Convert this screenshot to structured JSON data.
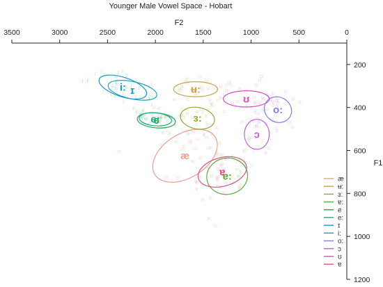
{
  "chart_data": {
    "type": "scatter",
    "title": "Younger Male Vowel Space - Hobart",
    "xlabel": "F2",
    "ylabel": "F1",
    "x_reversed": true,
    "y_reversed": true,
    "xlim": [
      3500,
      0
    ],
    "ylim": [
      0,
      1200
    ],
    "x_ticks": [
      "3500",
      "3000",
      "2500",
      "2000",
      "1500",
      "1000",
      "500",
      "0"
    ],
    "y_ticks": [
      "200",
      "400",
      "600",
      "800",
      "1000",
      "1200"
    ],
    "x_tick_values": [
      3500,
      3000,
      2500,
      2000,
      1500,
      1000,
      500,
      0
    ],
    "y_tick_values": [
      200,
      400,
      600,
      800,
      1000,
      1200
    ],
    "x_axis_position": "top",
    "y_axis_position": "right",
    "grid": false,
    "legend_position": "bottom-right",
    "series": [
      {
        "name": "æ",
        "color": "#e8a090",
        "centroid": [
          1690,
          625
        ],
        "sd_ellipse": {
          "f2_radius": 230,
          "f1_radius": 165,
          "angle_deg": 58
        }
      },
      {
        "name": "ʉ:",
        "color": "#c9a24c",
        "centroid": [
          1580,
          315
        ],
        "sd_ellipse": {
          "f2_radius": 230,
          "f1_radius": 35,
          "angle_deg": 0
        }
      },
      {
        "name": "ɜ:",
        "color": "#9aa62a",
        "centroid": [
          1560,
          450
        ],
        "sd_ellipse": {
          "f2_radius": 180,
          "f1_radius": 50,
          "angle_deg": 10
        }
      },
      {
        "name": "ɐ:",
        "color": "#5aaa3a",
        "centroid": [
          1250,
          720
        ],
        "sd_ellipse": {
          "f2_radius": 190,
          "f1_radius": 95,
          "angle_deg": 80
        }
      },
      {
        "name": "e",
        "color": "#2aa84a",
        "centroid": [
          1990,
          460
        ],
        "sd_ellipse": {
          "f2_radius": 200,
          "f1_radius": 35,
          "angle_deg": 5
        }
      },
      {
        "name": "e:",
        "color": "#1aaa8a",
        "centroid": [
          2000,
          455
        ],
        "sd_ellipse": {
          "f2_radius": 170,
          "f1_radius": 30,
          "angle_deg": 5
        }
      },
      {
        "name": "ɪ",
        "color": "#1aa4b4",
        "centroid": [
          2240,
          320
        ],
        "sd_ellipse": {
          "f2_radius": 260,
          "f1_radius": 40,
          "angle_deg": 12
        }
      },
      {
        "name": "i:",
        "color": "#1a96c8",
        "centroid": [
          2340,
          305
        ],
        "sd_ellipse": {
          "f2_radius": 260,
          "f1_radius": 45,
          "angle_deg": 18
        }
      },
      {
        "name": "o:",
        "color": "#8a7ee0",
        "centroid": [
          720,
          410
        ],
        "sd_ellipse": {
          "f2_radius": 130,
          "f1_radius": 65,
          "angle_deg": -60
        }
      },
      {
        "name": "ɔ",
        "color": "#c45cd8",
        "centroid": [
          940,
          525
        ],
        "sd_ellipse": {
          "f2_radius": 130,
          "f1_radius": 70,
          "angle_deg": 0
        }
      },
      {
        "name": "ʊ",
        "color": "#d84cc0",
        "centroid": [
          1050,
          360
        ],
        "sd_ellipse": {
          "f2_radius": 240,
          "f1_radius": 38,
          "angle_deg": 0
        }
      },
      {
        "name": "ɐ",
        "color": "#e0508c",
        "centroid": [
          1300,
          700
        ],
        "sd_ellipse": {
          "f2_radius": 150,
          "f1_radius": 115,
          "angle_deg": 75
        }
      }
    ]
  }
}
